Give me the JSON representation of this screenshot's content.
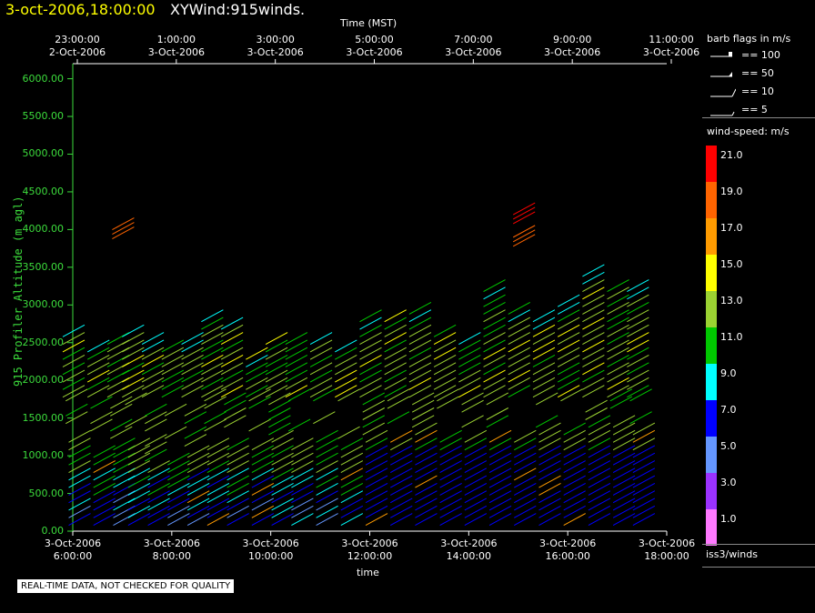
{
  "header": {
    "date_time": "3-oct-2006,18:00:00",
    "title": "XYWind:915winds."
  },
  "chart_data": {
    "type": "scatter",
    "subtype": "wind-barb time-height",
    "top_axis": {
      "label": "Time (MST)",
      "ticks": [
        {
          "time": "23:00:00",
          "date": "2-Oct-2006"
        },
        {
          "time": "1:00:00",
          "date": "3-Oct-2006"
        },
        {
          "time": "3:00:00",
          "date": "3-Oct-2006"
        },
        {
          "time": "5:00:00",
          "date": "3-Oct-2006"
        },
        {
          "time": "7:00:00",
          "date": "3-Oct-2006"
        },
        {
          "time": "9:00:00",
          "date": "3-Oct-2006"
        },
        {
          "time": "11:00:00",
          "date": "3-Oct-2006"
        }
      ]
    },
    "bottom_axis": {
      "label": "time",
      "ticks": [
        {
          "date": "3-Oct-2006",
          "time": "6:00:00"
        },
        {
          "date": "3-Oct-2006",
          "time": "8:00:00"
        },
        {
          "date": "3-Oct-2006",
          "time": "10:00:00"
        },
        {
          "date": "3-Oct-2006",
          "time": "12:00:00"
        },
        {
          "date": "3-Oct-2006",
          "time": "14:00:00"
        },
        {
          "date": "3-Oct-2006",
          "time": "16:00:00"
        },
        {
          "date": "3-Oct-2006",
          "time": "18:00:00"
        }
      ]
    },
    "y_axis": {
      "label": "915 Profiler Altitude (m agl)",
      "ylim": [
        0,
        6200
      ],
      "ticks": [
        "0.00",
        "500.00",
        "1000.00",
        "1500.00",
        "2000.00",
        "2500.00",
        "3000.00",
        "3500.00",
        "4000.00",
        "4500.00",
        "5000.00",
        "5500.00",
        "6000.00"
      ]
    },
    "time_range_hours": [
      6,
      18
    ],
    "profiles": [
      {
        "t": 6.0,
        "top": 2700,
        "low_top": 1300
      },
      {
        "t": 6.5,
        "top": 2500,
        "low_top": 1100
      },
      {
        "t": 6.9,
        "top": 2600,
        "low_top": 1200
      },
      {
        "t": 7.2,
        "top": 2700,
        "low_top": 1150
      },
      {
        "t": 7.6,
        "top": 2550,
        "low_top": 900
      },
      {
        "t": 8.0,
        "top": 2500,
        "low_top": 1000
      },
      {
        "t": 8.4,
        "top": 2550,
        "low_top": 1100
      },
      {
        "t": 8.8,
        "top": 2850,
        "low_top": 1200
      },
      {
        "t": 9.2,
        "top": 2800,
        "low_top": 1150
      },
      {
        "t": 9.7,
        "top": 2350,
        "low_top": 1200
      },
      {
        "t": 10.1,
        "top": 2600,
        "low_top": 1250
      },
      {
        "t": 10.5,
        "top": 2550,
        "low_top": 1200
      },
      {
        "t": 11.0,
        "top": 2600,
        "low_top": 1300
      },
      {
        "t": 11.5,
        "top": 2500,
        "low_top": 1200
      },
      {
        "t": 12.0,
        "top": 2850,
        "low_top": 1250
      },
      {
        "t": 12.5,
        "top": 2850,
        "low_top": 1300
      },
      {
        "t": 13.0,
        "top": 2950,
        "low_top": 1350
      },
      {
        "t": 13.5,
        "top": 2650,
        "low_top": 1300
      },
      {
        "t": 14.0,
        "top": 2550,
        "low_top": 1250
      },
      {
        "t": 14.5,
        "top": 3250,
        "low_top": 1250
      },
      {
        "t": 15.0,
        "top": 2950,
        "low_top": 1300
      },
      {
        "t": 15.5,
        "top": 2850,
        "low_top": 1350
      },
      {
        "t": 16.0,
        "top": 3050,
        "low_top": 1400
      },
      {
        "t": 16.5,
        "top": 3450,
        "low_top": 1450
      },
      {
        "t": 17.0,
        "top": 3300,
        "low_top": 1500
      },
      {
        "t": 17.4,
        "top": 3250,
        "low_top": 1400
      }
    ],
    "high_barbs": [
      {
        "t": 7.0,
        "alt": 3950,
        "speed": 18
      },
      {
        "t": 15.1,
        "alt": 4150,
        "speed": 21
      },
      {
        "t": 15.1,
        "alt": 3850,
        "speed": 18
      }
    ],
    "colorbar": {
      "title": "wind-speed: m/s",
      "entries": [
        {
          "label": "21.0",
          "color": "#ff0000"
        },
        {
          "label": "19.0",
          "color": "#ff6400"
        },
        {
          "label": "17.0",
          "color": "#ff9b00"
        },
        {
          "label": "15.0",
          "color": "#ffff00"
        },
        {
          "label": "13.0",
          "color": "#9bd232"
        },
        {
          "label": "11.0",
          "color": "#00c800"
        },
        {
          "label": "9.0",
          "color": "#00ffff"
        },
        {
          "label": "7.0",
          "color": "#0000ff"
        },
        {
          "label": "5.0",
          "color": "#6496ff"
        },
        {
          "label": "3.0",
          "color": "#9b32ff"
        },
        {
          "label": "1.0",
          "color": "#ff78ff"
        }
      ]
    }
  },
  "legend": {
    "barb_title": "barb flags in m/s",
    "barb_entries": [
      "== 100",
      "== 50",
      "== 10",
      "== 5"
    ]
  },
  "footer": {
    "station": "iss3/winds",
    "quality_note": "REAL-TIME DATA, NOT CHECKED FOR QUALITY"
  }
}
